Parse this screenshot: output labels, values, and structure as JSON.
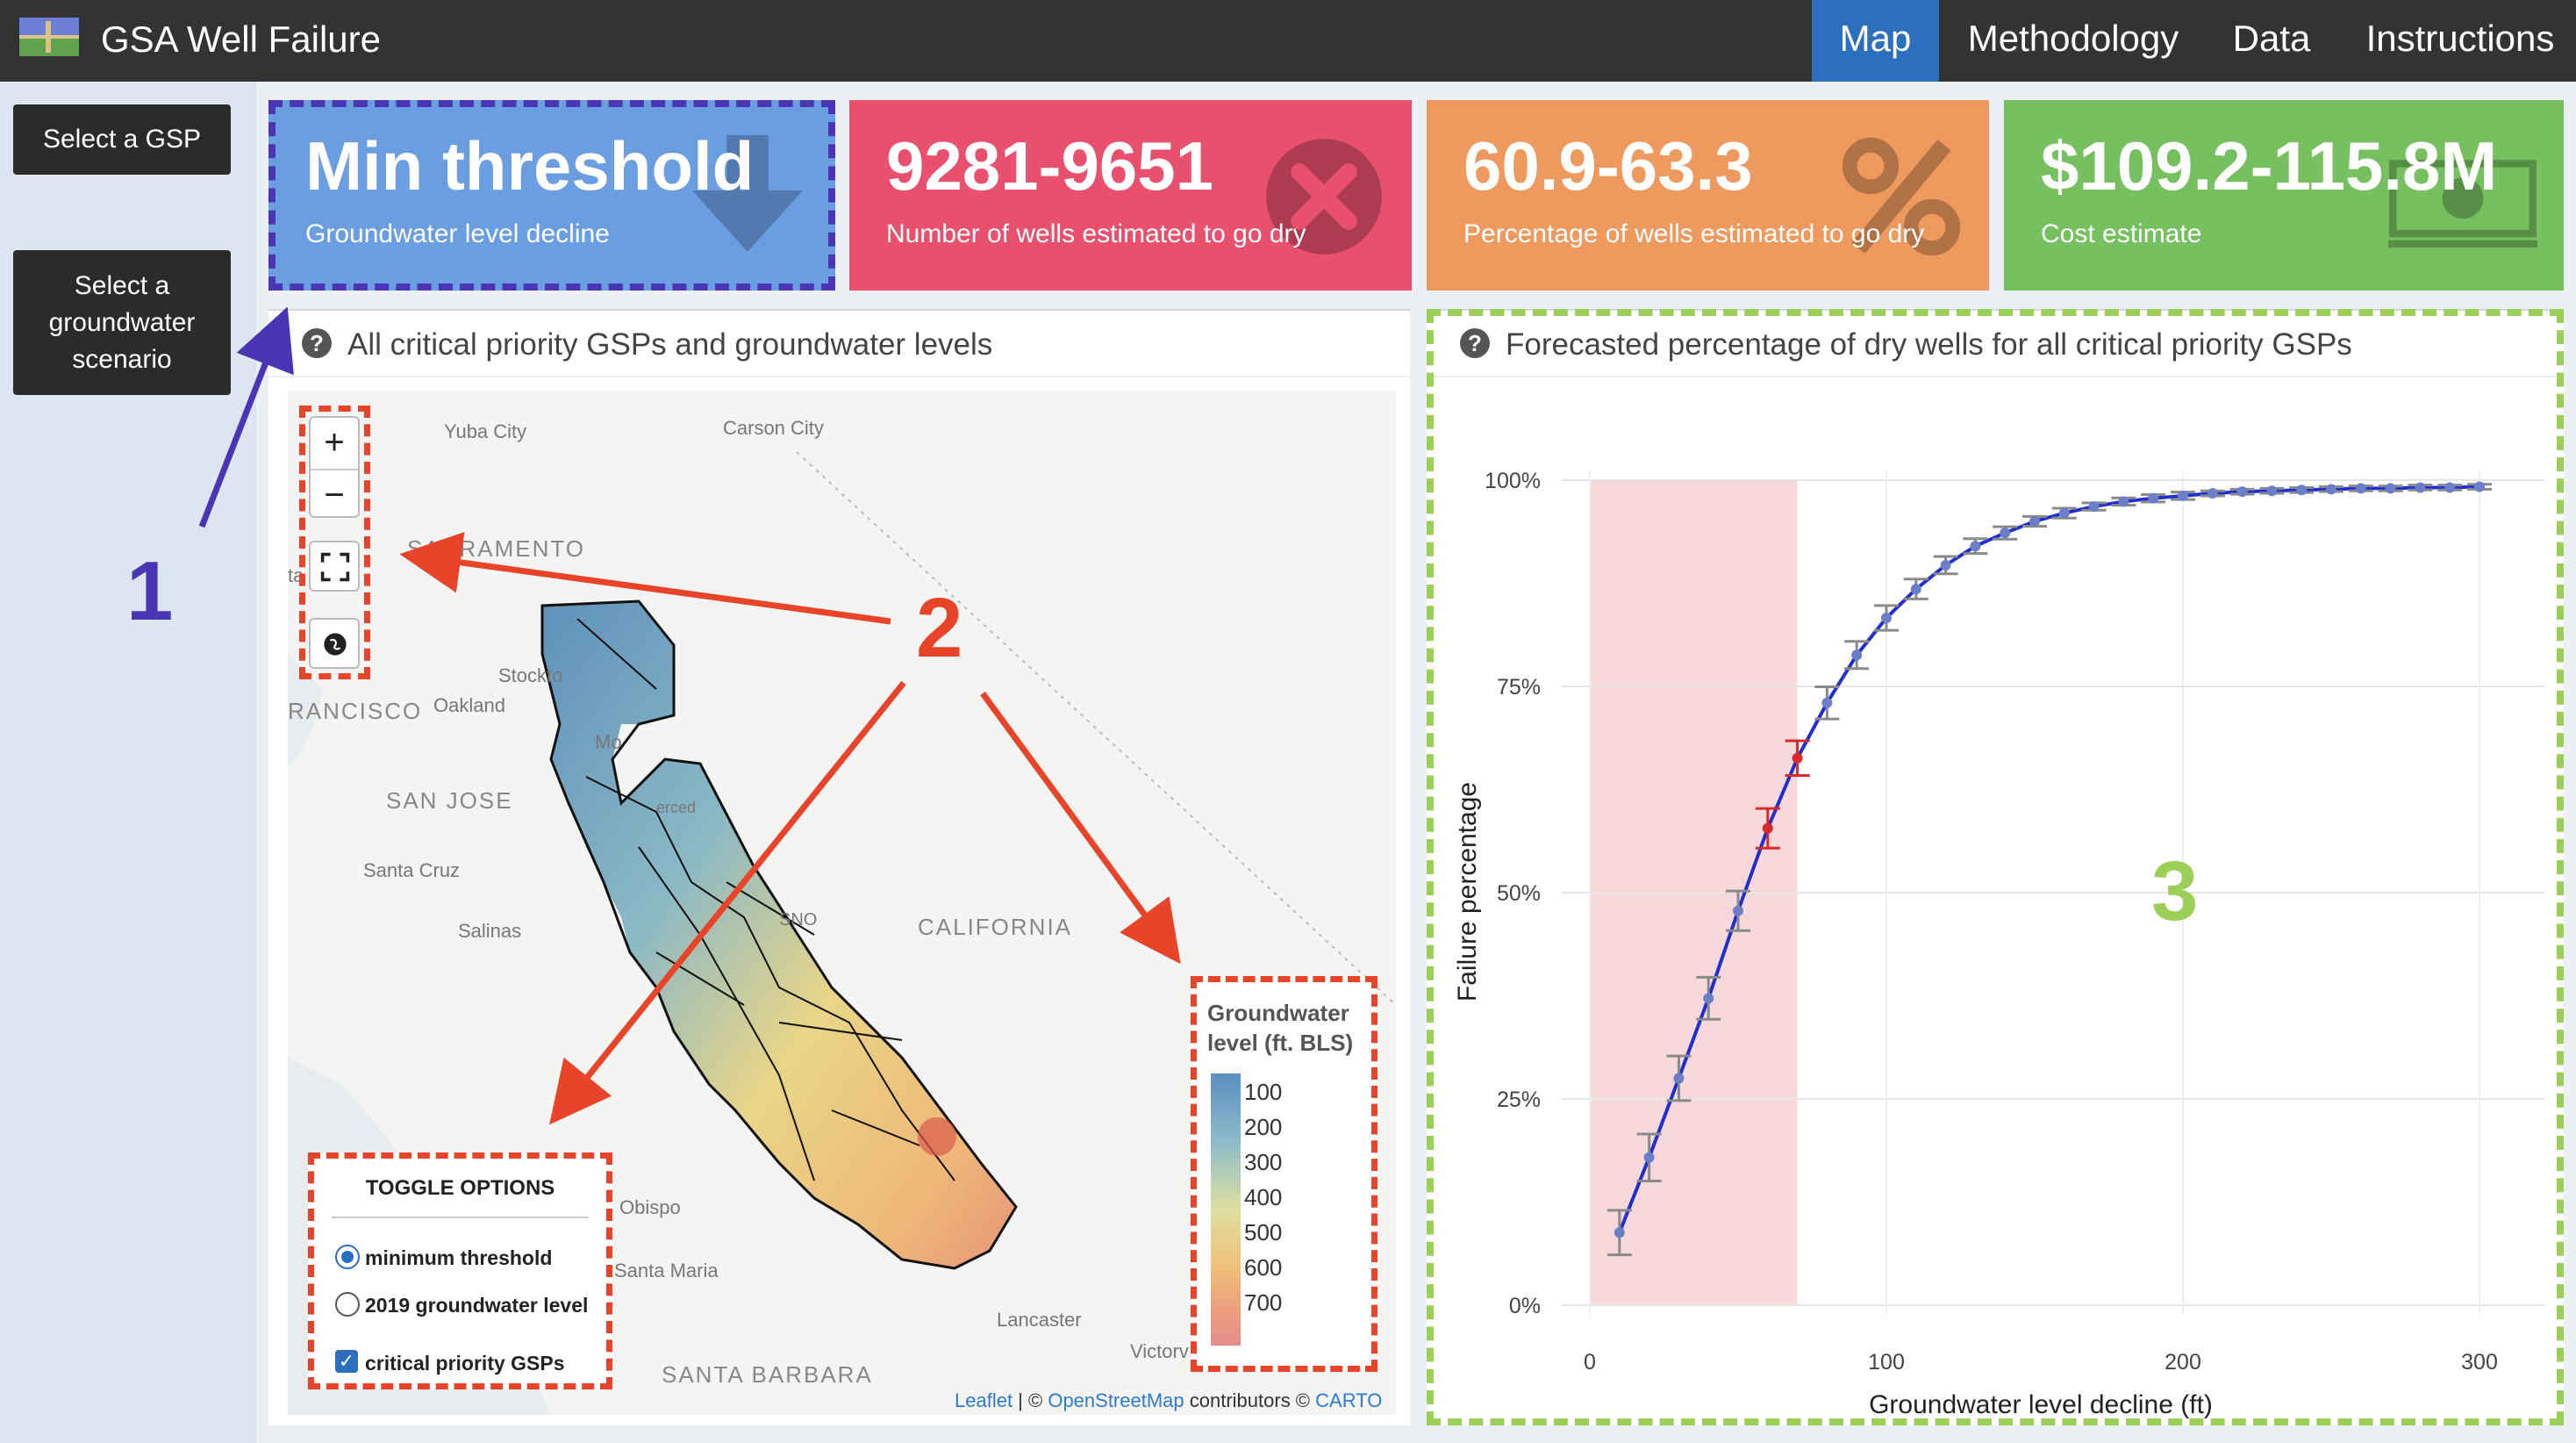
{
  "app": {
    "title": "GSA Well Failure",
    "nav_tabs": [
      "Map",
      "Methodology",
      "Data",
      "Instructions"
    ],
    "active_tab": "Map"
  },
  "sidebar": {
    "select_gsp": "Select a GSP",
    "select_scenario_lines": [
      "Select a",
      "groundwater",
      "scenario"
    ]
  },
  "value_boxes": [
    {
      "value": "Min threshold",
      "label": "Groundwater level decline",
      "color": "#6a9ee0",
      "icon": "arrow-down-icon"
    },
    {
      "value": "9281-9651",
      "label": "Number of wells estimated to go dry",
      "color": "#e9506d",
      "icon": "times-circle-icon"
    },
    {
      "value": "60.9-63.3",
      "label": "Percentage of wells estimated to go dry",
      "color": "#ee9a5e",
      "icon": "percent-icon"
    },
    {
      "value": "$109.2-115.8M",
      "label": "Cost estimate",
      "color": "#76c060",
      "icon": "money-icon"
    }
  ],
  "map_panel": {
    "title": "All critical priority GSPs and groundwater levels",
    "zoom_in": "+",
    "zoom_out": "−",
    "places": [
      "Yuba City",
      "Carson City",
      "SACRAMENTO",
      "Stockto",
      "RANCISCO",
      "Oakland",
      "Mo",
      "SAN JOSE",
      "Santa Cruz",
      "Salinas",
      "CALIFORNIA",
      "Obispo",
      "Santa Maria",
      "SANTA BARBARA",
      "Lancaster",
      "Victorv",
      "ta",
      "erced",
      "SNO"
    ],
    "toggle": {
      "title": "TOGGLE OPTIONS",
      "options": [
        "minimum threshold",
        "2019 groundwater level"
      ],
      "selected": "minimum threshold",
      "checkbox_label": "critical priority GSPs",
      "checkbox_checked": true
    },
    "legend": {
      "title_lines": [
        "Groundwater",
        "level (ft. BLS)"
      ],
      "ticks": [
        "100",
        "200",
        "300",
        "400",
        "500",
        "600",
        "700"
      ]
    },
    "attribution": {
      "leaflet": "Leaflet",
      "sep1": " | © ",
      "osm": "OpenStreetMap",
      "mid": " contributors © ",
      "carto": "CARTO"
    }
  },
  "annotations": {
    "one": "1",
    "two": "2",
    "three": "3",
    "colors": {
      "one": "#4a36b4",
      "two": "#e8442a",
      "three": "#9ccf57"
    }
  },
  "chart_data": {
    "type": "line",
    "title": "Forecasted percentage of dry wells for all critical priority GSPs",
    "xlabel": "Groundwater level decline (ft)",
    "ylabel": "Failure percentage",
    "xlim": [
      -5,
      310
    ],
    "ylim": [
      -2,
      105
    ],
    "xticks": [
      0,
      100,
      200,
      300
    ],
    "yticks": [
      0,
      25,
      50,
      75,
      100
    ],
    "ytick_labels": [
      "0%",
      "25%",
      "50%",
      "75%",
      "100%"
    ],
    "grid": true,
    "shaded_range_x": [
      0,
      70
    ],
    "highlighted_x": [
      60,
      70
    ],
    "series": [
      {
        "x": [
          10,
          20,
          30,
          40,
          50,
          60,
          70,
          80,
          90,
          100,
          110,
          120,
          130,
          140,
          150,
          160,
          170,
          180,
          190,
          200,
          210,
          220,
          230,
          240,
          250,
          260,
          270,
          280,
          290,
          300
        ],
        "y": [
          8.8,
          17.9,
          27.5,
          37.2,
          47.8,
          57.8,
          66.3,
          73.0,
          78.8,
          83.3,
          86.8,
          89.7,
          92.0,
          93.6,
          95.0,
          96.0,
          96.8,
          97.4,
          97.8,
          98.1,
          98.4,
          98.6,
          98.7,
          98.8,
          98.9,
          99.0,
          99.0,
          99.1,
          99.1,
          99.2
        ],
        "err": [
          1.8,
          1.9,
          1.8,
          1.7,
          1.6,
          1.6,
          1.4,
          1.3,
          1.1,
          1.0,
          0.8,
          0.7,
          0.6,
          0.5,
          0.4,
          0.4,
          0.3,
          0.3,
          0.3,
          0.3,
          0.2,
          0.2,
          0.2,
          0.2,
          0.2,
          0.2,
          0.2,
          0.2,
          0.2,
          0.2
        ]
      }
    ]
  }
}
